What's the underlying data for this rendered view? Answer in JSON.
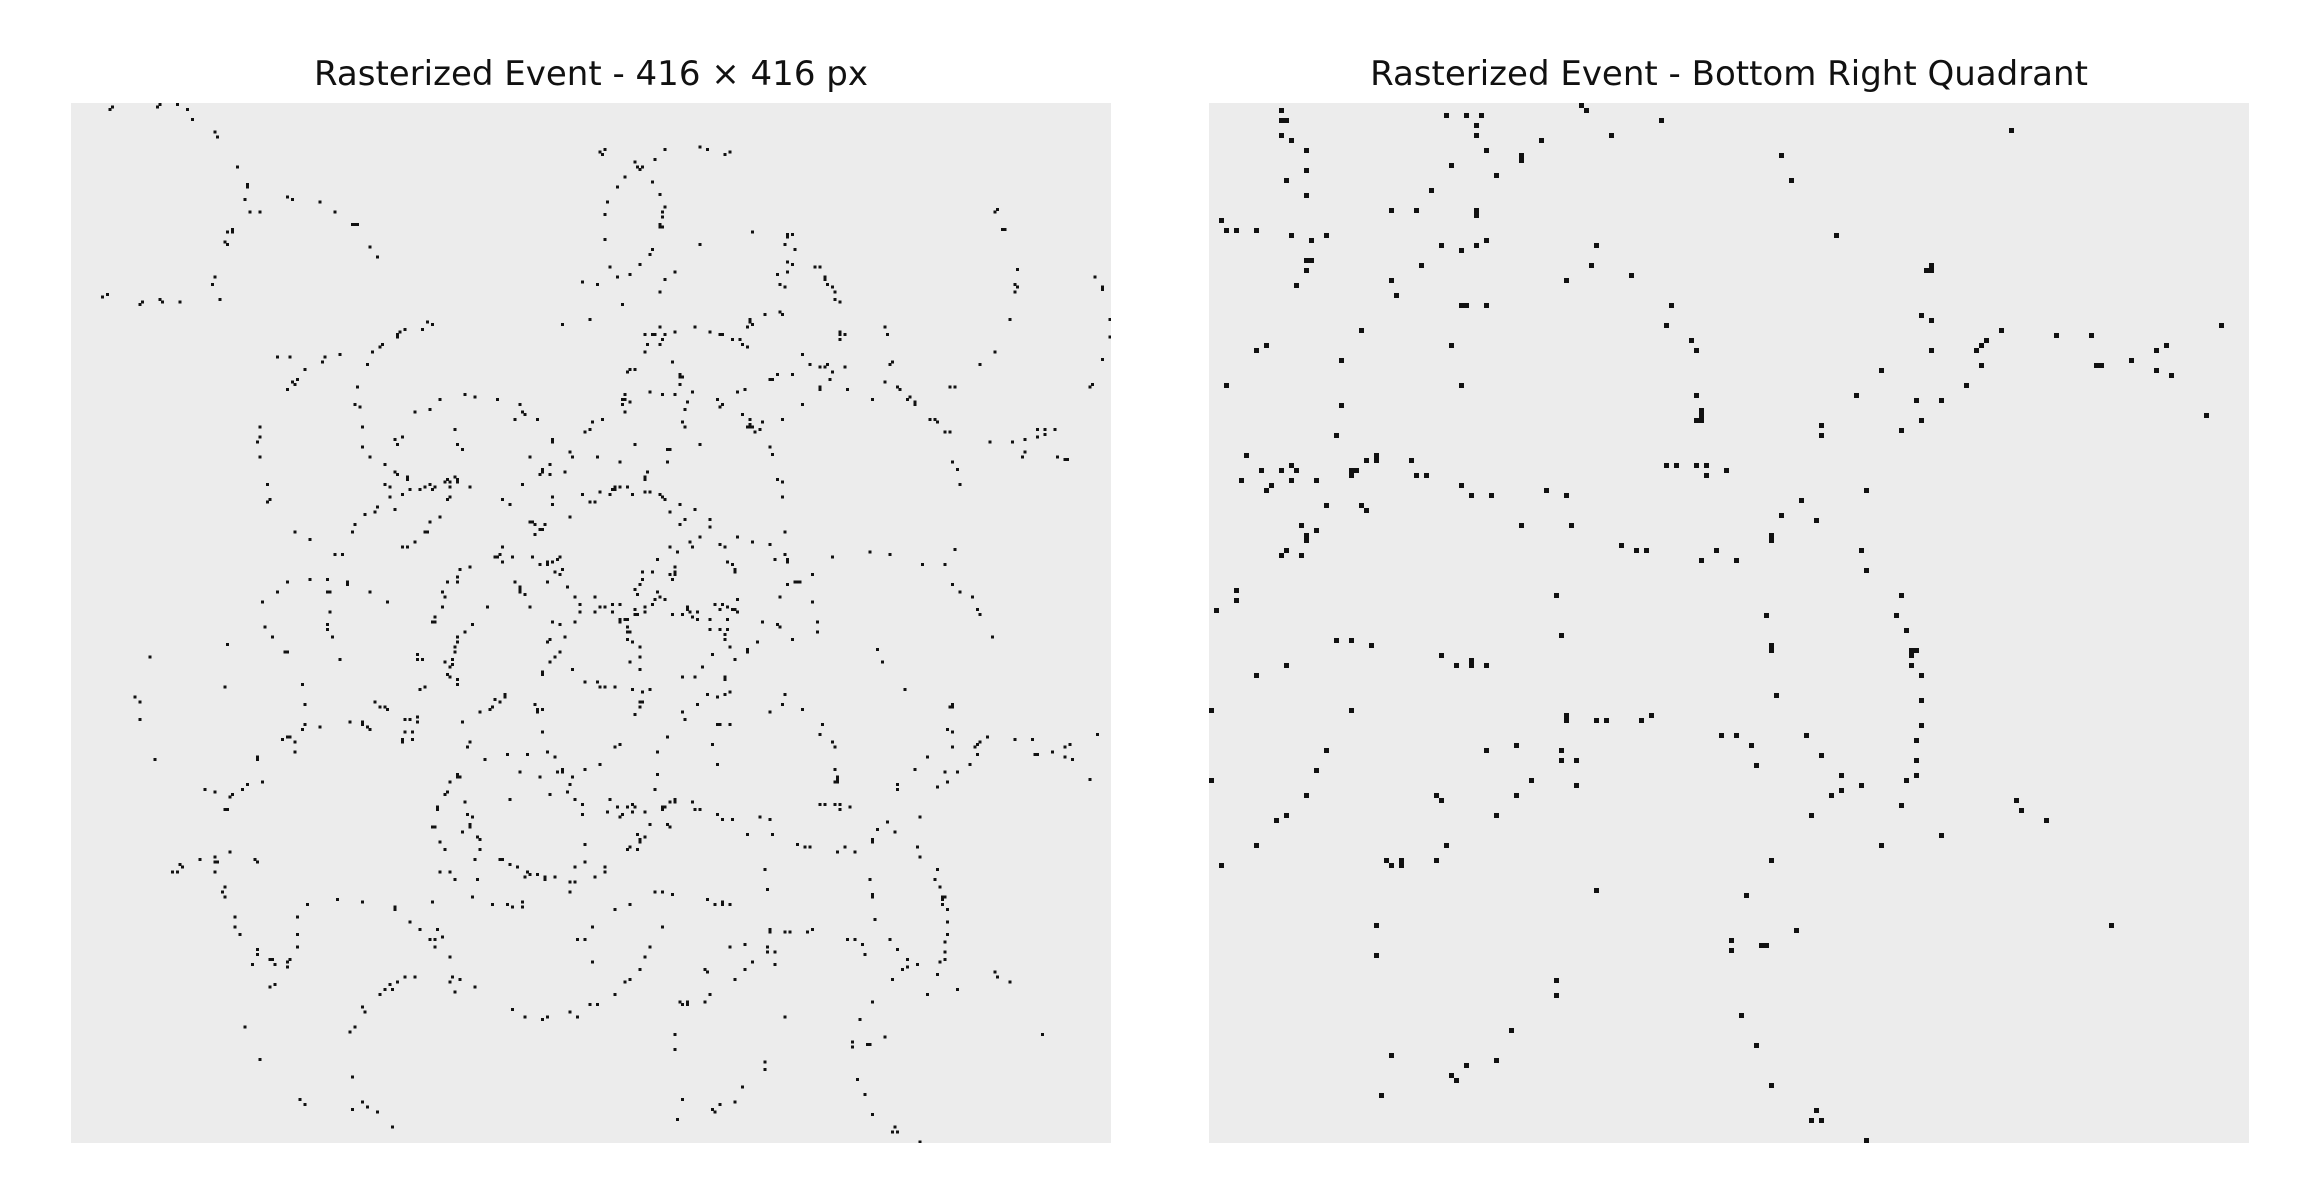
{
  "figure": {
    "background_color": "#ffffff",
    "panel_background_color": "#ececec",
    "point_color": "#111111"
  },
  "chart_data": [
    {
      "type": "scatter",
      "title": "Rasterized Event - 416 × 416 px",
      "xlabel": "",
      "ylabel": "",
      "axes_visible": false,
      "grid": false,
      "xlim": [
        0,
        416
      ],
      "ylim": [
        0,
        416
      ],
      "y_direction": "down",
      "description_of_marks": "sparse black event pixels forming overlapping ring arcs, densest near the center",
      "centers": [
        [
          207,
          175
        ],
        [
          225,
          195
        ],
        [
          190,
          230
        ],
        [
          228,
          240
        ],
        [
          175,
          210
        ],
        [
          240,
          160
        ],
        [
          195,
          270
        ],
        [
          150,
          200
        ],
        [
          210,
          120
        ],
        [
          145,
          120
        ],
        [
          115,
          140
        ],
        [
          260,
          210
        ],
        [
          190,
          320
        ],
        [
          240,
          320
        ],
        [
          110,
          300
        ],
        [
          300,
          330
        ],
        [
          60,
          330
        ],
        [
          60,
          240
        ],
        [
          110,
          360
        ],
        [
          270,
          90
        ],
        [
          300,
          160
        ],
        [
          305,
          250
        ],
        [
          240,
          360
        ],
        [
          290,
          380
        ],
        [
          370,
          305
        ],
        [
          380,
          200
        ],
        [
          90,
          70
        ],
        [
          250,
          55
        ],
        [
          30,
          40
        ],
        [
          330,
          70
        ],
        [
          175,
          290
        ],
        [
          210,
          45
        ],
        [
          370,
          90
        ],
        [
          140,
          380
        ],
        [
          350,
          380
        ],
        [
          320,
          230
        ],
        [
          100,
          230
        ],
        [
          270,
          270
        ],
        [
          160,
          150
        ],
        [
          250,
          120
        ]
      ],
      "radii": [
        35,
        40,
        38,
        42,
        30,
        45,
        40,
        48,
        35,
        32,
        40,
        38,
        45,
        40,
        52,
        50,
        30,
        34,
        42,
        38,
        55,
        48,
        45,
        50,
        52,
        60,
        32,
        38,
        40,
        48,
        30,
        26,
        45,
        30,
        38,
        50,
        40,
        36,
        34,
        30
      ],
      "points_per_ring": [
        34,
        38,
        36,
        40,
        30,
        38,
        36,
        40,
        30,
        28,
        30,
        32,
        32,
        30,
        32,
        30,
        18,
        20,
        22,
        28,
        30,
        26,
        26,
        28,
        22,
        24,
        22,
        26,
        24,
        26,
        26,
        22,
        24,
        16,
        18,
        26,
        20,
        24,
        26,
        24
      ]
    },
    {
      "type": "scatter",
      "title": "Rasterized Event - Bottom Right Quadrant",
      "xlabel": "",
      "ylabel": "",
      "axes_visible": false,
      "grid": false,
      "xlim": [
        208,
        416
      ],
      "ylim": [
        208,
        416
      ],
      "y_direction": "down",
      "description_of_marks": "zoomed view of the same event pixels in the bottom-right quadrant"
    }
  ]
}
